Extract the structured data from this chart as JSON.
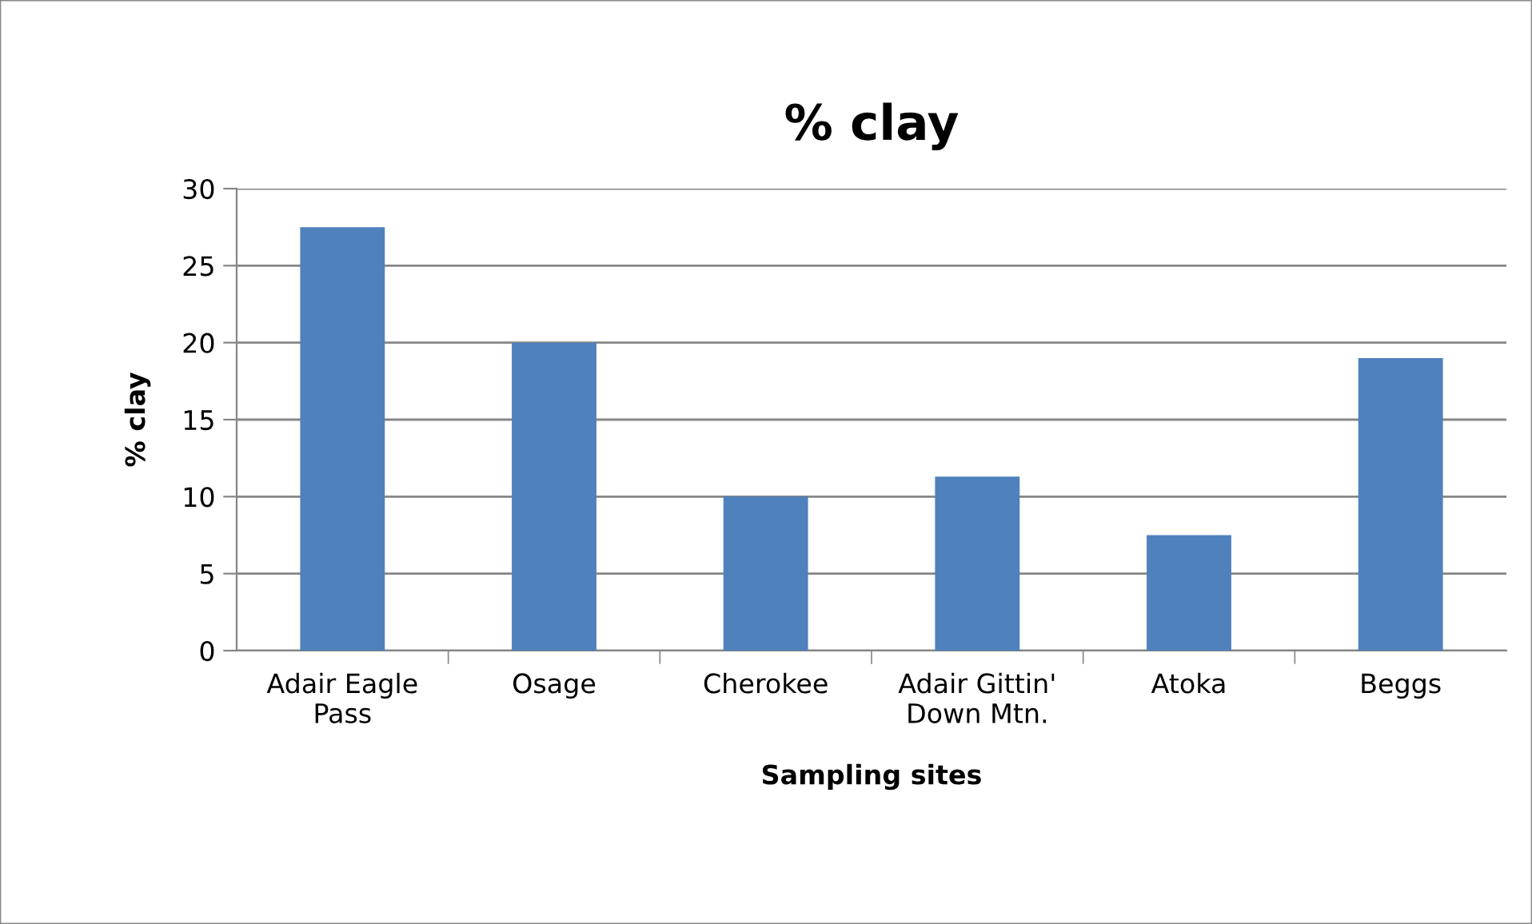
{
  "chart_data": {
    "type": "bar",
    "title": "% clay",
    "xlabel": "Sampling sites",
    "ylabel": "% clay",
    "categories": [
      "Adair Eagle Pass",
      "Osage",
      "Cherokee",
      "Adair Gittin' Down Mtn.",
      "Atoka",
      "Beggs"
    ],
    "values": [
      27.5,
      20.0,
      10.0,
      11.3,
      7.5,
      19.0
    ],
    "color": "#4f81bd",
    "ylim": [
      0,
      30
    ],
    "yticks": [
      0,
      5,
      10,
      15,
      20,
      25,
      30
    ],
    "grid": "y",
    "legend": false
  }
}
